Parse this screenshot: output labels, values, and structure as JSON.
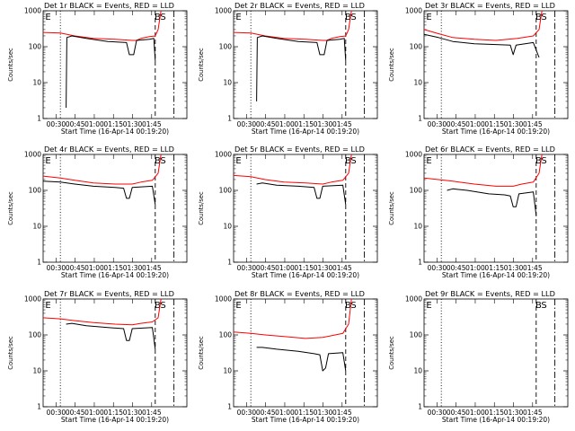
{
  "page": {
    "background": "#ffffff"
  },
  "style": {
    "events_color": "#000000",
    "lld_color": "#ff0000",
    "axis_color": "#000000"
  },
  "chart_data": [
    {
      "type": "line",
      "title": "Det 1r BLACK = Events, RED = LLD",
      "ylabel": "Counts/sec",
      "xlabel": "Start Time (16-Apr-14 00:19:20)",
      "x_ticks": [
        "00:30",
        "00:45",
        "01:00",
        "01:15",
        "01:30",
        "01:45"
      ],
      "y_ticks": [
        "1",
        "10",
        "100",
        "1000"
      ],
      "ylim": [
        1,
        1000
      ],
      "y_scale": "log",
      "markers": [
        "E",
        "B",
        "S"
      ],
      "has_data": true,
      "series": [
        {
          "values": [
            [
              0,
              250
            ],
            [
              0.12,
              240
            ],
            [
              0.22,
              200
            ],
            [
              0.35,
              170
            ],
            [
              0.5,
              160
            ],
            [
              0.62,
              150
            ],
            [
              0.65,
              150
            ],
            [
              0.68,
              170
            ],
            [
              0.74,
              190
            ],
            [
              0.78,
              200
            ],
            [
              0.8,
              300
            ],
            [
              0.82,
              1000
            ]
          ]
        },
        {
          "values": [
            [
              0.16,
              2
            ],
            [
              0.165,
              180
            ],
            [
              0.2,
              200
            ],
            [
              0.3,
              170
            ],
            [
              0.45,
              140
            ],
            [
              0.58,
              130
            ],
            [
              0.6,
              60
            ],
            [
              0.63,
              60
            ],
            [
              0.65,
              150
            ],
            [
              0.74,
              160
            ],
            [
              0.77,
              170
            ],
            [
              0.78,
              40
            ]
          ]
        }
      ]
    },
    {
      "type": "line",
      "title": "Det 2r BLACK = Events, RED = LLD",
      "ylabel": "Counts/sec",
      "xlabel": "Start Time (16-Apr-14 00:19:20)",
      "x_ticks": [
        "00:30",
        "00:45",
        "01:00",
        "01:15",
        "01:30",
        "01:45"
      ],
      "y_ticks": [
        "1",
        "10",
        "100",
        "1000"
      ],
      "ylim": [
        1,
        1000
      ],
      "y_scale": "log",
      "markers": [
        "E",
        "B",
        "S"
      ],
      "has_data": true,
      "series": [
        {
          "values": [
            [
              0,
              250
            ],
            [
              0.12,
              240
            ],
            [
              0.22,
              200
            ],
            [
              0.35,
              170
            ],
            [
              0.5,
              160
            ],
            [
              0.62,
              150
            ],
            [
              0.65,
              150
            ],
            [
              0.68,
              170
            ],
            [
              0.74,
              190
            ],
            [
              0.78,
              200
            ],
            [
              0.8,
              300
            ],
            [
              0.82,
              1000
            ]
          ]
        },
        {
          "values": [
            [
              0.16,
              3
            ],
            [
              0.165,
              180
            ],
            [
              0.2,
              200
            ],
            [
              0.3,
              170
            ],
            [
              0.45,
              140
            ],
            [
              0.58,
              130
            ],
            [
              0.6,
              60
            ],
            [
              0.63,
              60
            ],
            [
              0.65,
              150
            ],
            [
              0.74,
              160
            ],
            [
              0.77,
              170
            ],
            [
              0.78,
              40
            ]
          ]
        }
      ]
    },
    {
      "type": "line",
      "title": "Det 3r BLACK = Events, RED = LLD",
      "ylabel": "Counts/sec",
      "xlabel": "Start Time (16-Apr-14 00:19:20)",
      "x_ticks": [
        "00:30",
        "00:45",
        "01:00",
        "01:15",
        "01:30",
        "01:45"
      ],
      "y_ticks": [
        "1",
        "10",
        "100",
        "1000"
      ],
      "ylim": [
        1,
        1000
      ],
      "y_scale": "log",
      "markers": [
        "E",
        "B",
        "S"
      ],
      "has_data": true,
      "series": [
        {
          "values": [
            [
              0,
              300
            ],
            [
              0.1,
              230
            ],
            [
              0.2,
              180
            ],
            [
              0.35,
              160
            ],
            [
              0.5,
              150
            ],
            [
              0.65,
              170
            ],
            [
              0.76,
              200
            ],
            [
              0.8,
              300
            ],
            [
              0.82,
              1000
            ]
          ]
        },
        {
          "values": [
            [
              0,
              220
            ],
            [
              0.1,
              180
            ],
            [
              0.2,
              140
            ],
            [
              0.35,
              120
            ],
            [
              0.5,
              115
            ],
            [
              0.6,
              110
            ],
            [
              0.62,
              60
            ],
            [
              0.64,
              110
            ],
            [
              0.76,
              130
            ],
            [
              0.8,
              50
            ]
          ]
        }
      ]
    },
    {
      "type": "line",
      "title": "Det 4r BLACK = Events, RED = LLD",
      "ylabel": "Counts/sec",
      "xlabel": "Start Time (16-Apr-14 00:19:20)",
      "x_ticks": [
        "00:30",
        "00:45",
        "01:00",
        "01:15",
        "01:30",
        "01:45"
      ],
      "y_ticks": [
        "1",
        "10",
        "100",
        "1000"
      ],
      "ylim": [
        1,
        1000
      ],
      "y_scale": "log",
      "markers": [
        "E",
        "B",
        "S"
      ],
      "has_data": true,
      "series": [
        {
          "values": [
            [
              0,
              250
            ],
            [
              0.12,
              220
            ],
            [
              0.22,
              190
            ],
            [
              0.35,
              160
            ],
            [
              0.5,
              150
            ],
            [
              0.62,
              150
            ],
            [
              0.68,
              170
            ],
            [
              0.76,
              190
            ],
            [
              0.8,
              300
            ],
            [
              0.82,
              1000
            ]
          ]
        },
        {
          "values": [
            [
              0,
              180
            ],
            [
              0.12,
              170
            ],
            [
              0.22,
              150
            ],
            [
              0.35,
              130
            ],
            [
              0.5,
              120
            ],
            [
              0.56,
              115
            ],
            [
              0.58,
              60
            ],
            [
              0.6,
              60
            ],
            [
              0.62,
              120
            ],
            [
              0.76,
              130
            ],
            [
              0.78,
              40
            ]
          ]
        }
      ]
    },
    {
      "type": "line",
      "title": "Det 5r BLACK = Events, RED = LLD",
      "ylabel": "Counts/sec",
      "xlabel": "Start Time (16-Apr-14 00:19:20)",
      "x_ticks": [
        "00:30",
        "00:45",
        "01:00",
        "01:15",
        "01:30",
        "01:45"
      ],
      "y_ticks": [
        "1",
        "10",
        "100",
        "1000"
      ],
      "ylim": [
        1,
        1000
      ],
      "y_scale": "log",
      "markers": [
        "E",
        "B",
        "S"
      ],
      "has_data": true,
      "series": [
        {
          "values": [
            [
              0,
              260
            ],
            [
              0.12,
              240
            ],
            [
              0.22,
              200
            ],
            [
              0.35,
              170
            ],
            [
              0.5,
              160
            ],
            [
              0.62,
              150
            ],
            [
              0.68,
              170
            ],
            [
              0.76,
              190
            ],
            [
              0.8,
              300
            ],
            [
              0.82,
              1000
            ]
          ]
        },
        {
          "values": [
            [
              0.16,
              150
            ],
            [
              0.2,
              160
            ],
            [
              0.3,
              140
            ],
            [
              0.45,
              130
            ],
            [
              0.56,
              120
            ],
            [
              0.58,
              60
            ],
            [
              0.6,
              60
            ],
            [
              0.62,
              130
            ],
            [
              0.76,
              140
            ],
            [
              0.78,
              40
            ]
          ]
        }
      ]
    },
    {
      "type": "line",
      "title": "Det 6r BLACK = Events, RED = LLD",
      "ylabel": "Counts/sec",
      "xlabel": "Start Time (16-Apr-14 00:19:20)",
      "x_ticks": [
        "00:30",
        "00:45",
        "01:00",
        "01:15",
        "01:30",
        "01:45"
      ],
      "y_ticks": [
        "1",
        "10",
        "100",
        "1000"
      ],
      "ylim": [
        1,
        1000
      ],
      "y_scale": "log",
      "markers": [
        "E",
        "B",
        "S"
      ],
      "has_data": true,
      "series": [
        {
          "values": [
            [
              0,
              220
            ],
            [
              0.1,
              200
            ],
            [
              0.2,
              180
            ],
            [
              0.35,
              150
            ],
            [
              0.5,
              130
            ],
            [
              0.62,
              130
            ],
            [
              0.68,
              150
            ],
            [
              0.76,
              170
            ],
            [
              0.8,
              300
            ],
            [
              0.82,
              1000
            ]
          ]
        },
        {
          "values": [
            [
              0.16,
              100
            ],
            [
              0.2,
              110
            ],
            [
              0.3,
              100
            ],
            [
              0.45,
              80
            ],
            [
              0.56,
              75
            ],
            [
              0.6,
              70
            ],
            [
              0.62,
              35
            ],
            [
              0.64,
              35
            ],
            [
              0.66,
              80
            ],
            [
              0.76,
              90
            ],
            [
              0.78,
              20
            ]
          ]
        }
      ]
    },
    {
      "type": "line",
      "title": "Det 7r BLACK = Events, RED = LLD",
      "ylabel": "Counts/sec",
      "xlabel": "Start Time (16-Apr-14 00:19:20)",
      "x_ticks": [
        "00:30",
        "00:45",
        "01:00",
        "01:15",
        "01:30",
        "01:45"
      ],
      "y_ticks": [
        "1",
        "10",
        "100",
        "1000"
      ],
      "ylim": [
        1,
        1000
      ],
      "y_scale": "log",
      "markers": [
        "E",
        "B",
        "S"
      ],
      "has_data": true,
      "series": [
        {
          "values": [
            [
              0,
              300
            ],
            [
              0.12,
              280
            ],
            [
              0.22,
              250
            ],
            [
              0.35,
              220
            ],
            [
              0.5,
              200
            ],
            [
              0.62,
              190
            ],
            [
              0.68,
              210
            ],
            [
              0.76,
              230
            ],
            [
              0.8,
              300
            ],
            [
              0.82,
              1000
            ]
          ]
        },
        {
          "values": [
            [
              0.16,
              200
            ],
            [
              0.2,
              210
            ],
            [
              0.3,
              180
            ],
            [
              0.45,
              160
            ],
            [
              0.56,
              150
            ],
            [
              0.58,
              70
            ],
            [
              0.6,
              70
            ],
            [
              0.62,
              150
            ],
            [
              0.76,
              160
            ],
            [
              0.78,
              40
            ]
          ]
        }
      ]
    },
    {
      "type": "line",
      "title": "Det 8r BLACK = Events, RED = LLD",
      "ylabel": "Counts/sec",
      "xlabel": "Start Time (16-Apr-14 00:19:20)",
      "x_ticks": [
        "00:30",
        "00:45",
        "01:00",
        "01:15",
        "01:30",
        "01:45"
      ],
      "y_ticks": [
        "1",
        "10",
        "100",
        "1000"
      ],
      "ylim": [
        1,
        1000
      ],
      "y_scale": "log",
      "markers": [
        "E",
        "B",
        "S"
      ],
      "has_data": true,
      "series": [
        {
          "values": [
            [
              0,
              120
            ],
            [
              0.12,
              110
            ],
            [
              0.22,
              100
            ],
            [
              0.35,
              90
            ],
            [
              0.5,
              80
            ],
            [
              0.62,
              85
            ],
            [
              0.68,
              95
            ],
            [
              0.76,
              110
            ],
            [
              0.8,
              200
            ],
            [
              0.82,
              1000
            ]
          ]
        },
        {
          "values": [
            [
              0.16,
              45
            ],
            [
              0.2,
              45
            ],
            [
              0.3,
              40
            ],
            [
              0.45,
              35
            ],
            [
              0.56,
              30
            ],
            [
              0.6,
              28
            ],
            [
              0.62,
              10
            ],
            [
              0.64,
              12
            ],
            [
              0.66,
              30
            ],
            [
              0.76,
              32
            ],
            [
              0.78,
              10
            ]
          ]
        }
      ]
    },
    {
      "type": "line",
      "title": "Det 9r BLACK = Events, RED = LLD",
      "ylabel": "Counts/sec",
      "xlabel": "Start Time (16-Apr-14 00:19:20)",
      "x_ticks": [
        "00:30",
        "00:45",
        "01:00",
        "01:15",
        "01:30",
        "01:45"
      ],
      "y_ticks": [
        "1",
        "10",
        "100",
        "1000"
      ],
      "ylim": [
        1,
        1000
      ],
      "y_scale": "log",
      "markers": [
        "E",
        "B",
        "S"
      ],
      "has_data": false,
      "series": []
    }
  ]
}
